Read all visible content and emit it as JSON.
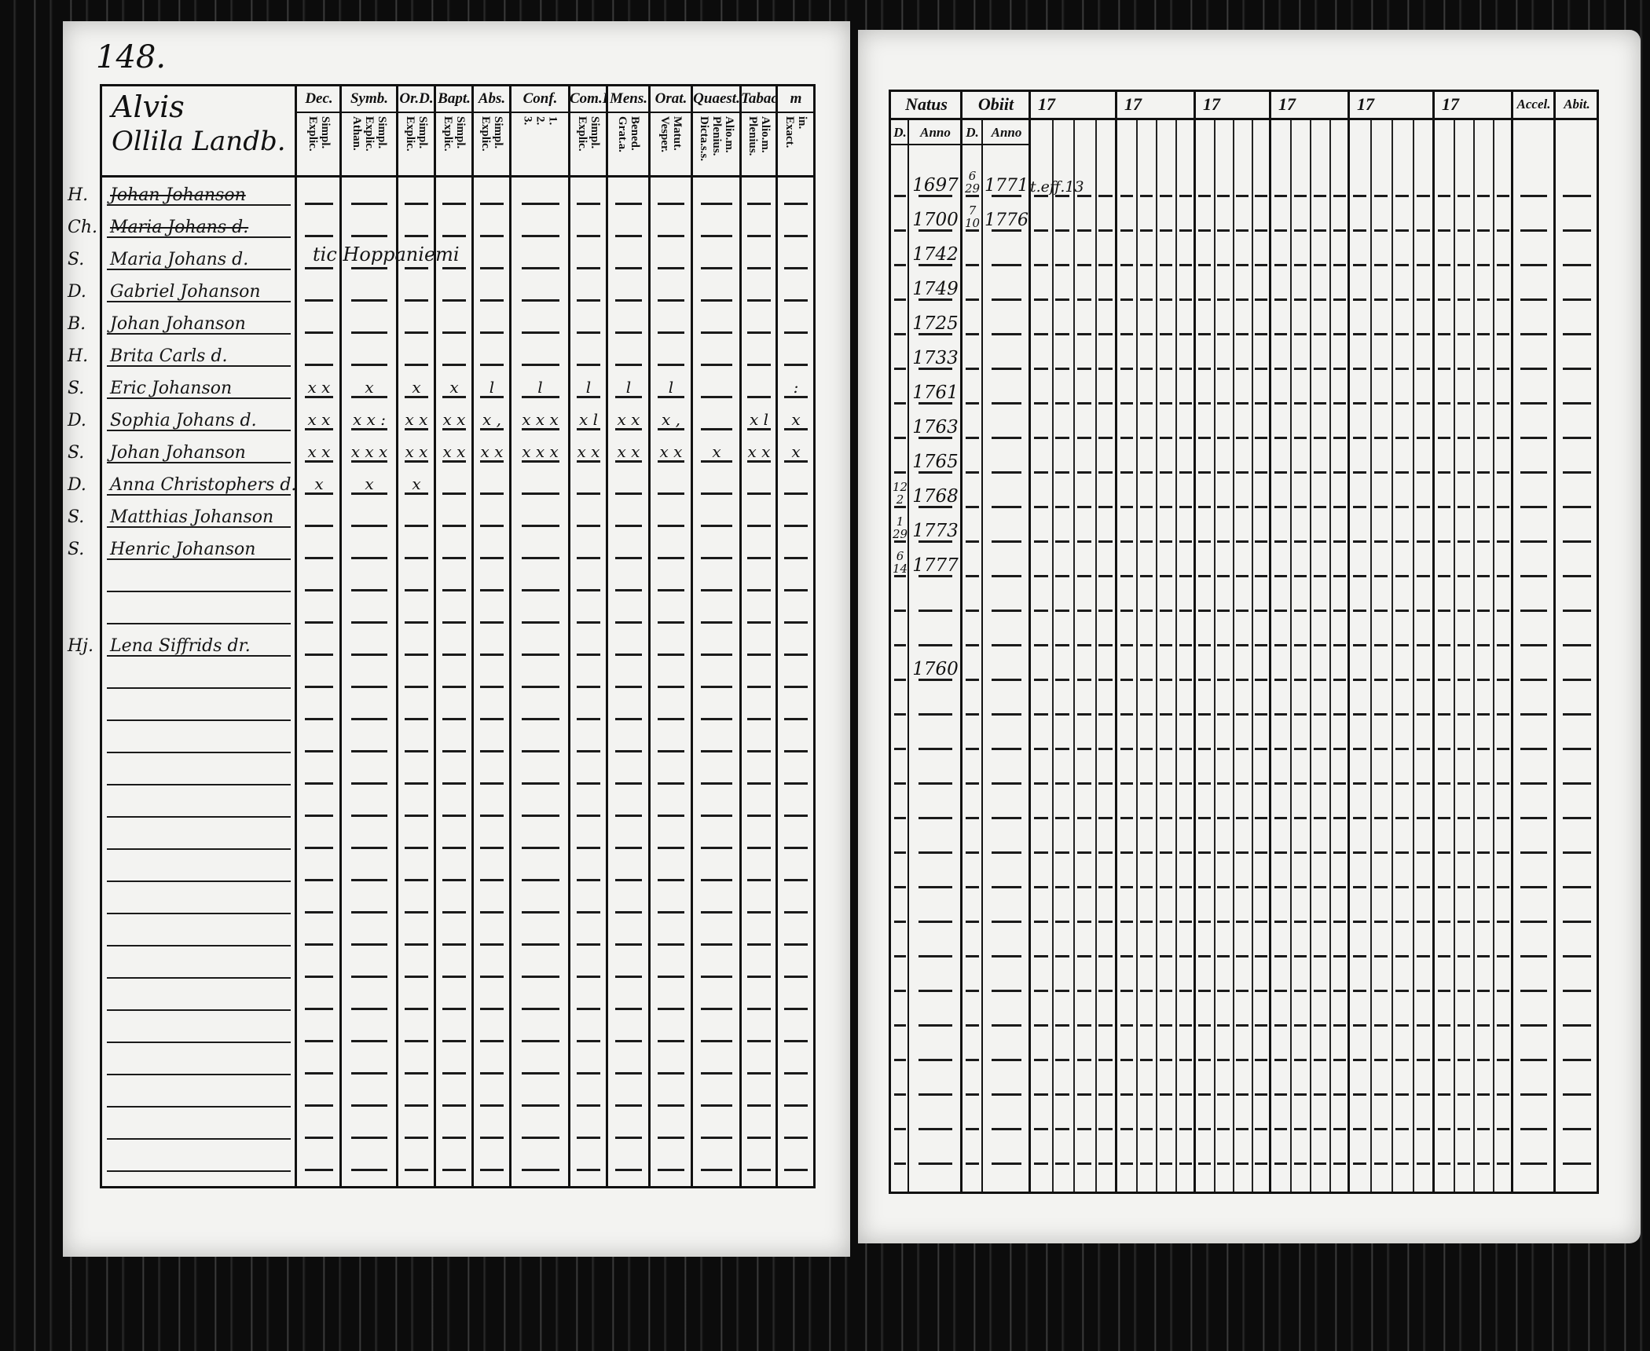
{
  "page_number": "148.",
  "left_page": {
    "household_title": [
      "Alvis",
      "Ollila Landb."
    ],
    "columns": [
      {
        "label": "Dec.",
        "sub": [
          "Explic.",
          "Simpl."
        ]
      },
      {
        "label": "Symb.",
        "sub": [
          "Athan.",
          "Explic.",
          "Simpl."
        ]
      },
      {
        "label": "Or.D.",
        "sub": [
          "Explic.",
          "Simpl."
        ]
      },
      {
        "label": "Bapt.",
        "sub": [
          "Explic.",
          "Simpl."
        ]
      },
      {
        "label": "Abs.",
        "sub": [
          "Explic.",
          "Simpl."
        ]
      },
      {
        "label": "Conf.",
        "sub": [
          "3.",
          "2.",
          "1."
        ]
      },
      {
        "label": "Com.D.",
        "sub": [
          "Explic.",
          "Simpl."
        ]
      },
      {
        "label": "Mens.",
        "sub": [
          "Grat.a.",
          "Bened."
        ]
      },
      {
        "label": "Orat.",
        "sub": [
          "Vesper.",
          "Matut."
        ]
      },
      {
        "label": "Quaest.",
        "sub": [
          "Dicta.s.s.",
          "Plenius.",
          "Alio.m."
        ]
      },
      {
        "label": "Tabac.",
        "sub": [
          "Plenius.",
          "Alio.m."
        ]
      },
      {
        "label": "m",
        "sub": [
          "Exact.",
          "in."
        ]
      }
    ],
    "note": "tic Hoppaniemi"
  },
  "right_page": {
    "natus": "Natus",
    "obiit": "Obiit",
    "day": "D.",
    "anno": "Anno",
    "year_groups": [
      "17",
      "17",
      "17",
      "17",
      "17",
      "17"
    ],
    "accel": "Accel.",
    "abit": "Abit."
  },
  "persons": [
    {
      "prefix": "H.",
      "name": "Johan Johanson",
      "struck": true,
      "marks": [],
      "natus_year": "1697",
      "obiit_day": [
        "6",
        "29"
      ],
      "obiit_year": "1771",
      "remark": "t.eff.13"
    },
    {
      "prefix": "Ch.",
      "name": "Maria Johans d.",
      "struck": true,
      "marks": [],
      "natus_year": "1700",
      "obiit_day": [
        "7",
        "10"
      ],
      "obiit_year": "1776"
    },
    {
      "prefix": "S.",
      "name": "Maria Johans d.",
      "struck": false,
      "marks": [],
      "natus_year": "1742"
    },
    {
      "prefix": "D.",
      "name": "Gabriel Johanson",
      "marks": [],
      "natus_year": "1749"
    },
    {
      "prefix": "B.",
      "name": "Johan Johanson",
      "marks": [],
      "natus_year": "1725"
    },
    {
      "prefix": "H.",
      "name": "Brita Carls d.",
      "marks": [],
      "natus_year": "1733"
    },
    {
      "prefix": "S.",
      "name": "Eric Johanson",
      "marks": [
        "x x",
        "x",
        "x",
        "x",
        "l",
        "l",
        "l",
        "l",
        "l",
        "",
        "",
        ":"
      ],
      "natus_year": "1761"
    },
    {
      "prefix": "D.",
      "name": "Sophia Johans d.",
      "marks": [
        "x x",
        "x x :",
        "x x",
        "x x",
        "x ,",
        "x x x",
        "x l",
        "x x",
        "x ,",
        "",
        "x l",
        "x"
      ],
      "natus_year": "1763"
    },
    {
      "prefix": "S.",
      "name": "Johan Johanson",
      "marks": [
        "x x",
        "x x x",
        "x x",
        "x x",
        "x x",
        "x x x",
        "x x",
        "x x",
        "x x",
        "x",
        "x x",
        "x"
      ],
      "natus_year": "1765"
    },
    {
      "prefix": "D.",
      "name": "Anna Christophers d.",
      "marks": [
        "x",
        "x",
        "x"
      ],
      "natus_day": [
        "12",
        "2"
      ],
      "natus_year": "1768"
    },
    {
      "prefix": "S.",
      "name": "Matthias Johanson",
      "marks": [],
      "natus_day": [
        "1",
        "29"
      ],
      "natus_year": "1773"
    },
    {
      "prefix": "S.",
      "name": "Henric Johanson",
      "marks": [],
      "natus_day": [
        "6",
        "14"
      ],
      "natus_year": "1777"
    },
    {},
    {},
    {
      "prefix": "Hj.",
      "name": "Lena Siffrids dr.",
      "marks": [],
      "natus_year": "1760"
    }
  ]
}
